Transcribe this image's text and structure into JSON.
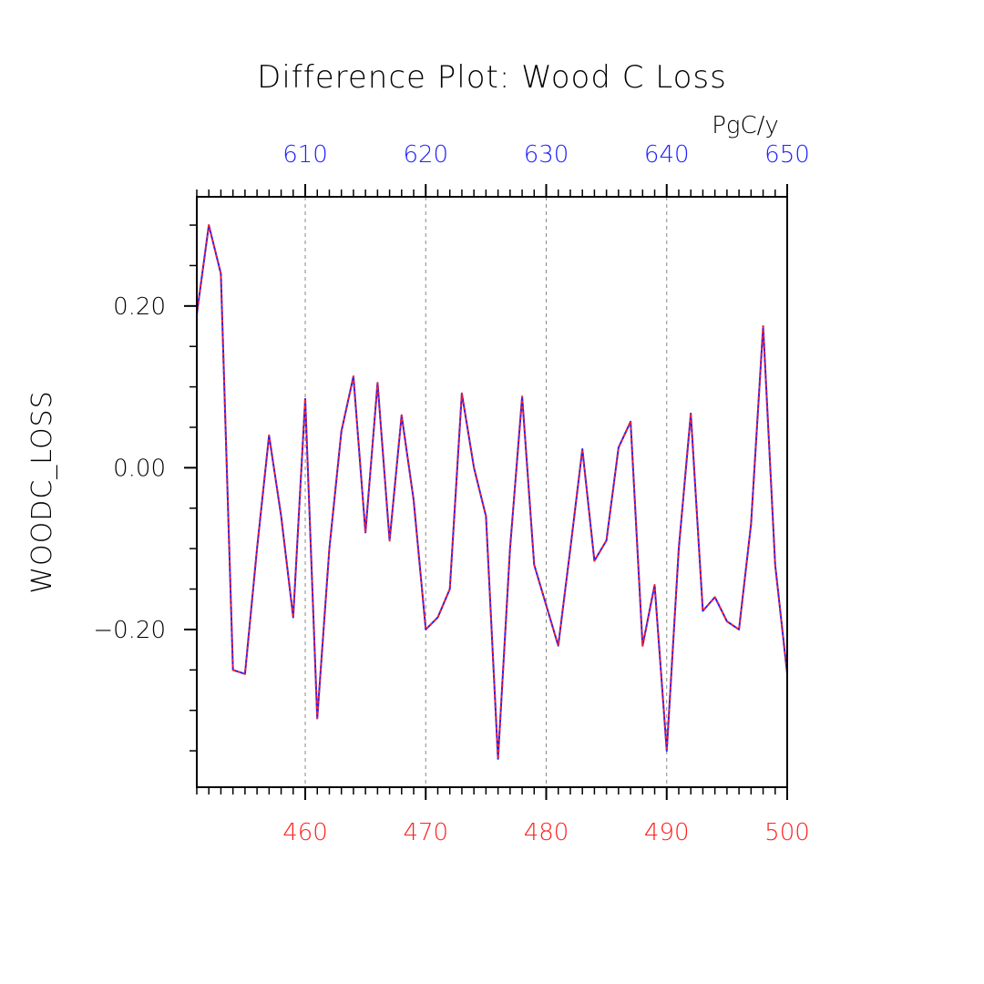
{
  "title": "Difference Plot: Wood C Loss",
  "units": "PgC/y",
  "chart_data": {
    "type": "line",
    "title": "Difference Plot: Wood C Loss",
    "ylabel": "WOODC_LOSS",
    "units": "PgC/y",
    "xlim_bottom": [
      451,
      500
    ],
    "xlim_top": [
      601,
      650
    ],
    "ylim": [
      -0.395,
      0.335
    ],
    "x_ticks_bottom": [
      460,
      470,
      480,
      490,
      500
    ],
    "x_tick_labels_bottom": [
      "460",
      "470",
      "480",
      "490",
      "500"
    ],
    "x_ticks_top": [
      610,
      620,
      630,
      640,
      650
    ],
    "x_tick_labels_top": [
      "610",
      "620",
      "630",
      "640",
      "650"
    ],
    "y_ticks": [
      0.2,
      0.0,
      -0.2
    ],
    "y_tick_labels": [
      "0.20",
      "0.00",
      "−0.20"
    ],
    "grid": "vertical dashed at major bottom ticks",
    "colors": {
      "series_dashed": "#ff2020",
      "series_solid": "#2020ff",
      "bottom_axis": "#ff2020",
      "top_axis": "#2020ff"
    },
    "x": [
      451,
      452,
      453,
      454,
      455,
      456,
      457,
      458,
      459,
      460,
      461,
      462,
      463,
      464,
      465,
      466,
      467,
      468,
      469,
      470,
      471,
      472,
      473,
      474,
      475,
      476,
      477,
      478,
      479,
      480,
      481,
      482,
      483,
      484,
      485,
      486,
      487,
      488,
      489,
      490,
      491,
      492,
      493,
      494,
      495,
      496,
      497,
      498,
      499,
      500
    ],
    "series": [
      {
        "values": [
          0.19,
          0.3,
          0.24,
          -0.25,
          -0.255,
          -0.1,
          0.04,
          -0.06,
          -0.185,
          0.085,
          -0.31,
          -0.1,
          0.045,
          0.113,
          -0.08,
          0.105,
          -0.09,
          0.065,
          -0.04,
          -0.2,
          -0.185,
          -0.15,
          0.092,
          0.0,
          -0.06,
          -0.36,
          -0.1,
          0.088,
          -0.12,
          -0.17,
          -0.22,
          -0.1,
          0.023,
          -0.115,
          -0.09,
          0.025,
          0.057,
          -0.22,
          -0.145,
          -0.35,
          -0.1,
          0.067,
          -0.177,
          -0.16,
          -0.19,
          -0.2,
          -0.07,
          0.175,
          -0.12,
          -0.255
        ]
      }
    ]
  }
}
